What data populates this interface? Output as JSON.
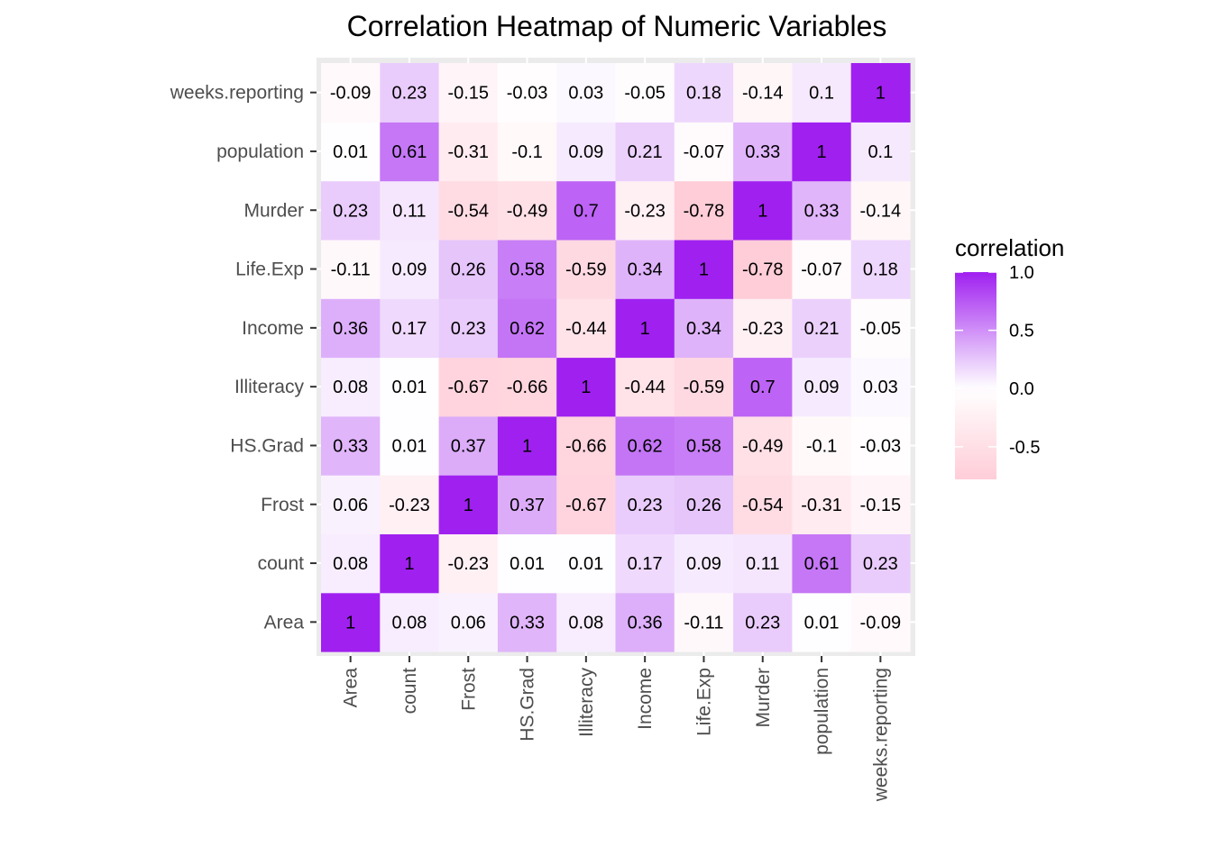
{
  "chart_data": {
    "type": "heatmap",
    "title": "Correlation Heatmap of Numeric Variables",
    "xlabel": "",
    "ylabel": "",
    "x_categories": [
      "Area",
      "count",
      "Frost",
      "HS.Grad",
      "Illiteracy",
      "Income",
      "Life.Exp",
      "Murder",
      "population",
      "weeks.reporting"
    ],
    "y_categories": [
      "Area",
      "count",
      "Frost",
      "HS.Grad",
      "Illiteracy",
      "Income",
      "Life.Exp",
      "Murder",
      "population",
      "weeks.reporting"
    ],
    "matrix": [
      [
        1,
        0.08,
        0.06,
        0.33,
        0.08,
        0.36,
        -0.11,
        0.23,
        0.01,
        -0.09
      ],
      [
        0.08,
        1,
        -0.23,
        0.01,
        0.01,
        0.17,
        0.09,
        0.11,
        0.61,
        0.23
      ],
      [
        0.06,
        -0.23,
        1,
        0.37,
        -0.67,
        0.23,
        0.26,
        -0.54,
        -0.31,
        -0.15
      ],
      [
        0.33,
        0.01,
        0.37,
        1,
        -0.66,
        0.62,
        0.58,
        -0.49,
        -0.1,
        -0.03
      ],
      [
        0.08,
        0.01,
        -0.67,
        -0.66,
        1,
        -0.44,
        -0.59,
        0.7,
        0.09,
        0.03
      ],
      [
        0.36,
        0.17,
        0.23,
        0.62,
        -0.44,
        1,
        0.34,
        -0.23,
        0.21,
        -0.05
      ],
      [
        -0.11,
        0.09,
        0.26,
        0.58,
        -0.59,
        0.34,
        1,
        -0.78,
        -0.07,
        0.18
      ],
      [
        0.23,
        0.11,
        -0.54,
        -0.49,
        0.7,
        -0.23,
        -0.78,
        1,
        0.33,
        -0.14
      ],
      [
        0.01,
        0.61,
        -0.31,
        -0.1,
        0.09,
        0.21,
        -0.07,
        0.33,
        1,
        0.1
      ],
      [
        -0.09,
        0.23,
        -0.15,
        -0.03,
        0.03,
        -0.05,
        0.18,
        -0.14,
        0.1,
        1
      ]
    ],
    "color_scale": {
      "low": "#ffcdd8",
      "mid": "#ffffff",
      "high": "#a020f0",
      "limits": [
        -0.78,
        1
      ]
    },
    "legend": {
      "title": "correlation",
      "ticks": [
        1.0,
        0.5,
        0.0,
        -0.5
      ],
      "tick_labels": [
        "1.0",
        "0.5",
        "0.0",
        "-0.5"
      ],
      "position": "right"
    },
    "panel_background": "#ebebeb"
  }
}
